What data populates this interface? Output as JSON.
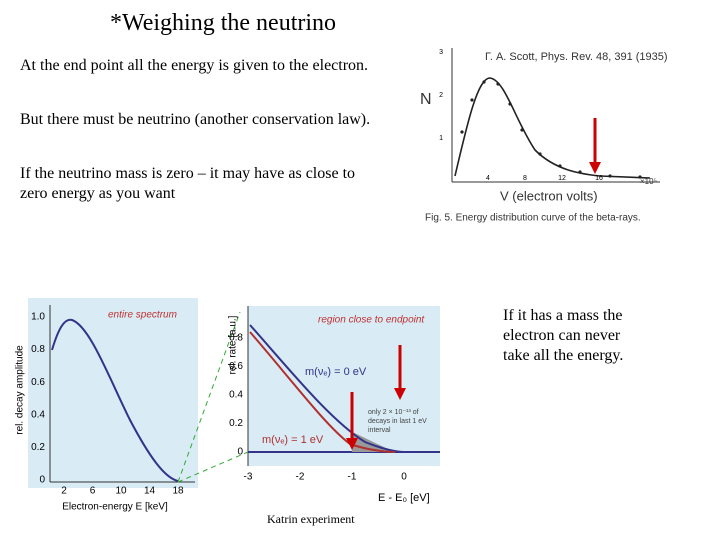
{
  "title": "*Weighing the neutrino",
  "paragraphs": [
    "At the end point all the energy is given to the electron.",
    "But there must be neutrino (another conservation law).",
    "If the neutrino mass is zero – it may have as close to zero energy as you want"
  ],
  "side_note": "If it has a mass the electron can never take all the energy.",
  "figure_scott": {
    "citation": "Γ. A. Scott, Phys. Rev. 48, 391 (1935)",
    "y_label": "N",
    "x_label": "V (electron volts)",
    "x_scale": "×10⁵",
    "y_ticks": [
      "3",
      "2",
      "1"
    ],
    "x_ticks": [
      "4",
      "8",
      "12",
      "16"
    ],
    "caption": "Fig. 5. Energy distribution curve of the beta-rays."
  },
  "figure_katrin": {
    "left_panel": {
      "label": "entire spectrum",
      "y_label": "rel. decay amplitude",
      "x_label": "Electron-energy E [keV]",
      "y_ticks": [
        "1.0",
        "0.8",
        "0.6",
        "0.4",
        "0.2",
        "0"
      ],
      "x_ticks": [
        "2",
        "6",
        "10",
        "14",
        "18"
      ]
    },
    "right_panel": {
      "label": "region close to endpoint",
      "y_label": "rel. rate [a.u.]",
      "x_label": "E - E₀ [eV]",
      "y_ticks": [
        "0.8",
        "0.6",
        "0.4",
        "0.2",
        "0"
      ],
      "x_ticks": [
        "-3",
        "-2",
        "-1",
        "0"
      ],
      "curve_labels": [
        "m(νₑ) = 0 eV",
        "m(νₑ) = 1 eV"
      ],
      "annotation": [
        "only 2 × 10⁻¹³ of",
        "decays in last 1 eV",
        "interval"
      ]
    },
    "caption": "Katrin experiment"
  }
}
